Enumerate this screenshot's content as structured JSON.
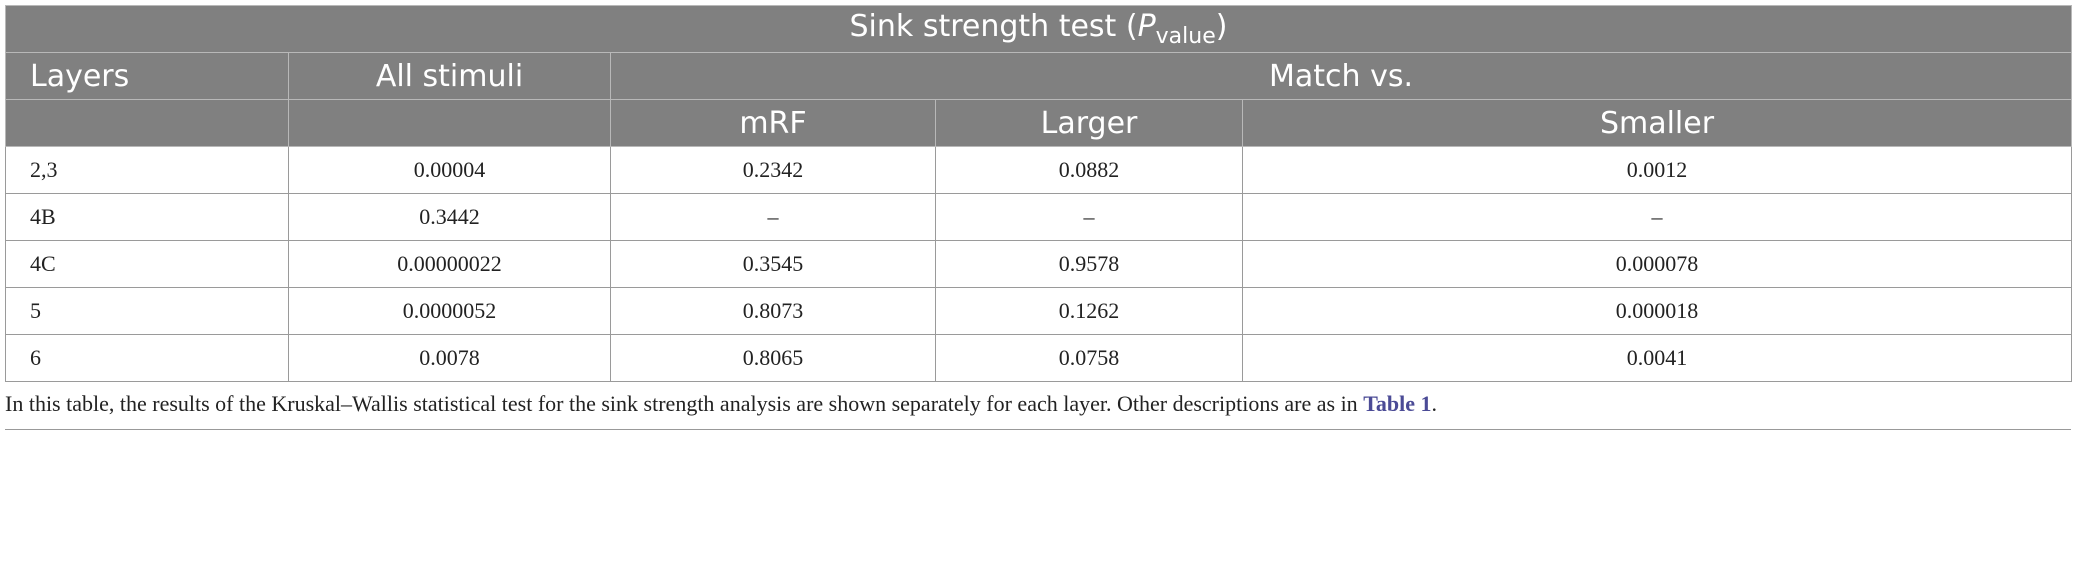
{
  "table": {
    "title": {
      "text": "Sink strength test (",
      "var": "P",
      "sub": "value",
      "close": ")"
    },
    "header": {
      "layers": "Layers",
      "all": "All stimuli",
      "match": "Match vs.",
      "sub": [
        "mRF",
        "Larger",
        "Smaller"
      ]
    },
    "rows": [
      [
        "2,3",
        "0.00004",
        "0.2342",
        "0.0882",
        "0.0012"
      ],
      [
        "4B",
        "0.3442",
        "–",
        "–",
        "–"
      ],
      [
        "4C",
        "0.00000022",
        "0.3545",
        "0.9578",
        "0.000078"
      ],
      [
        "5",
        "0.0000052",
        "0.8073",
        "0.1262",
        "0.000018"
      ],
      [
        "6",
        "0.0078",
        "0.8065",
        "0.0758",
        "0.0041"
      ]
    ]
  },
  "caption": {
    "text": "In this table, the results of the Kruskal–Wallis statistical test for the sink strength analysis are shown separately for each layer. Other descriptions are as in ",
    "link": "Table 1",
    "end": "."
  }
}
